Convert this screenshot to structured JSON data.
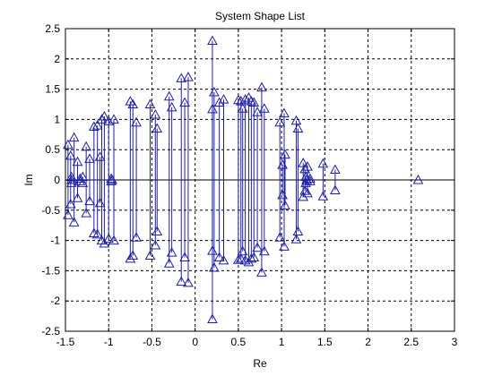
{
  "chart_data": {
    "type": "scatter",
    "title": "System Shape List",
    "xlabel": "Re",
    "ylabel": "Im",
    "xlim": [
      -1.5,
      3
    ],
    "ylim": [
      -2.5,
      2.5
    ],
    "xticks": [
      "-1.5",
      "-1",
      "-0.5",
      "0",
      "0.5",
      "1",
      "1.5",
      "2",
      "2.5",
      "3"
    ],
    "yticks": [
      "2.5",
      "2",
      "1.5",
      "1",
      "0.5",
      "0",
      "-0.5",
      "-1",
      "-1.5",
      "-2",
      "-2.5"
    ],
    "grid": true,
    "marker": "triangle",
    "series_color": "#1f1fa8",
    "conjugate_pairs": [
      {
        "re": -1.47,
        "im": 0.58
      },
      {
        "re": -1.44,
        "im": 0.4
      },
      {
        "re": -1.43,
        "im": 0.05
      },
      {
        "re": -1.4,
        "im": 0.7
      },
      {
        "re": -1.36,
        "im": 0.3
      },
      {
        "re": -1.33,
        "im": 0.02
      },
      {
        "re": -1.3,
        "im": 0.05
      },
      {
        "re": -1.26,
        "im": 0.55
      },
      {
        "re": -1.22,
        "im": 0.35
      },
      {
        "re": -1.17,
        "im": 0.88
      },
      {
        "re": -1.13,
        "im": 0.9
      },
      {
        "re": -1.1,
        "im": 0.38
      },
      {
        "re": -1.08,
        "im": 1.0
      },
      {
        "re": -1.05,
        "im": 1.05
      },
      {
        "re": -1.0,
        "im": 0.97
      },
      {
        "re": -0.97,
        "im": 0.02
      },
      {
        "re": -0.94,
        "im": 1.0
      },
      {
        "re": -0.75,
        "im": 1.3
      },
      {
        "re": -0.72,
        "im": 1.25
      },
      {
        "re": -0.68,
        "im": 0.95
      },
      {
        "re": -0.52,
        "im": 1.25
      },
      {
        "re": -0.46,
        "im": 1.08
      },
      {
        "re": -0.44,
        "im": 0.85
      },
      {
        "re": -0.3,
        "im": 1.38
      },
      {
        "re": -0.27,
        "im": 1.2
      },
      {
        "re": -0.16,
        "im": 1.68
      },
      {
        "re": -0.12,
        "im": 1.28
      },
      {
        "re": -0.08,
        "im": 1.7
      },
      {
        "re": 0.2,
        "im": 2.3
      },
      {
        "re": 0.22,
        "im": 1.45
      },
      {
        "re": 0.2,
        "im": 1.17
      },
      {
        "re": 0.28,
        "im": 1.28
      },
      {
        "re": 0.33,
        "im": 1.33
      },
      {
        "re": 0.5,
        "im": 1.32
      },
      {
        "re": 0.53,
        "im": 1.3
      },
      {
        "re": 0.55,
        "im": 1.18
      },
      {
        "re": 0.58,
        "im": 1.33
      },
      {
        "re": 0.62,
        "im": 1.36
      },
      {
        "re": 0.65,
        "im": 1.3
      },
      {
        "re": 0.68,
        "im": 1.28
      },
      {
        "re": 0.72,
        "im": 1.12
      },
      {
        "re": 0.77,
        "im": 1.53
      },
      {
        "re": 0.8,
        "im": 1.18
      },
      {
        "re": 0.98,
        "im": 0.95
      },
      {
        "re": 1.01,
        "im": 0.25
      },
      {
        "re": 1.03,
        "im": 1.1
      },
      {
        "re": 1.04,
        "im": 0.42
      },
      {
        "re": 1.17,
        "im": 0.98
      },
      {
        "re": 1.19,
        "im": 0.85
      },
      {
        "re": 1.25,
        "im": 0.28
      },
      {
        "re": 1.27,
        "im": 0.18
      },
      {
        "re": 1.28,
        "im": 0.05
      },
      {
        "re": 1.3,
        "im": 0.22
      },
      {
        "re": 1.33,
        "im": 0.02
      },
      {
        "re": 1.48,
        "im": 0.27
      },
      {
        "re": 1.62,
        "im": 0.17
      }
    ],
    "real_points": [
      {
        "re": -1.43,
        "im": 0.0
      },
      {
        "re": -0.96,
        "im": 0.0
      },
      {
        "re": 1.29,
        "im": 0.0
      },
      {
        "re": 2.58,
        "im": 0.0
      }
    ]
  }
}
